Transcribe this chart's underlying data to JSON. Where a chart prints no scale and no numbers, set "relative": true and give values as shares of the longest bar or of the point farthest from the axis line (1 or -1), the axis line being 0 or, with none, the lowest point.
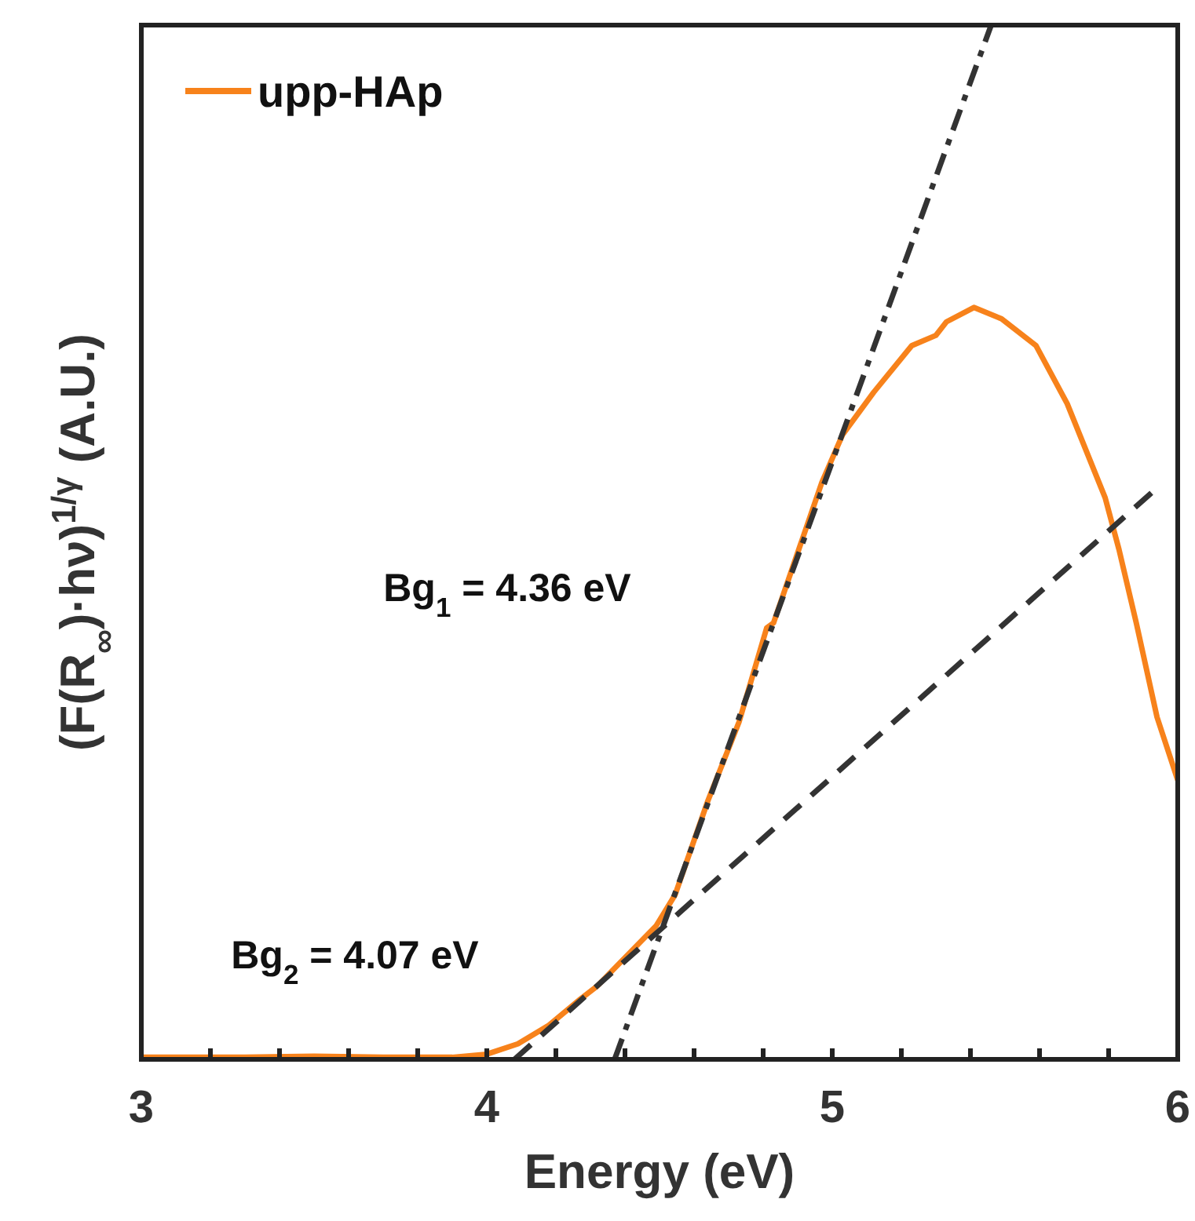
{
  "chart_data": {
    "type": "line",
    "relative": true,
    "xlabel": "Energy (eV)",
    "ylabel": "(F(R$_{∞}$)·hν)$^{1/γ}$ (A.U.)",
    "xlim": [
      3,
      6
    ],
    "xticks": [
      3,
      {
        "value": 3.2,
        "label": null
      },
      {
        "value": 3.4,
        "label": null
      },
      {
        "value": 3.6,
        "label": null
      },
      {
        "value": 3.8,
        "label": null
      },
      4,
      {
        "value": 4.2,
        "label": null
      },
      {
        "value": 4.4,
        "label": null
      },
      {
        "value": 4.6,
        "label": null
      },
      {
        "value": 4.8,
        "label": null
      },
      5,
      {
        "value": 5.2,
        "label": null
      },
      {
        "value": 5.4,
        "label": null
      },
      {
        "value": 5.6,
        "label": null
      },
      {
        "value": 5.8,
        "label": null
      },
      6
    ],
    "legend": "top left",
    "grid": false,
    "tick_labels": "x",
    "series": [
      {
        "name": "upp-HAp",
        "color": "#f7821b",
        "line_style": "solid",
        "x": [
          3,
          3.3,
          3.5,
          3.7,
          3.9,
          4.0,
          4.09,
          4.18,
          4.27,
          4.32,
          4.49,
          4.545,
          4.64,
          4.73,
          4.81,
          4.83,
          4.97,
          5.03,
          5.12,
          5.23,
          5.3,
          5.33,
          5.41,
          5.49,
          5.59,
          5.68,
          5.79,
          5.83,
          5.88,
          5.94,
          6
        ],
        "values": [
          0.002,
          0.002,
          0.003,
          0.002,
          0.002,
          0.005,
          0.015,
          0.033,
          0.058,
          0.071,
          0.129,
          0.159,
          0.25,
          0.326,
          0.417,
          0.422,
          0.558,
          0.604,
          0.645,
          0.69,
          0.7,
          0.713,
          0.727,
          0.716,
          0.69,
          0.634,
          0.543,
          0.493,
          0.422,
          0.331,
          0.27
        ]
      },
      {
        "color": "#333333",
        "line_style": "dashdot",
        "x": [
          4.37,
          5.46
        ],
        "values": [
          0,
          1
        ]
      },
      {
        "color": "#333333",
        "line_style": "dashed",
        "x": [
          4.08,
          5.945
        ],
        "values": [
          0,
          0.554
        ]
      }
    ],
    "annotations": [
      "Bg$_{1}$ = 4.36 eV",
      "Bg$_{2}$ = 4.07 eV"
    ]
  }
}
